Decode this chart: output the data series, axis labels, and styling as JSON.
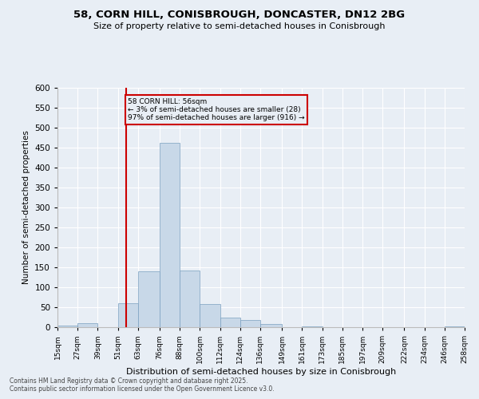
{
  "title1": "58, CORN HILL, CONISBROUGH, DONCASTER, DN12 2BG",
  "title2": "Size of property relative to semi-detached houses in Conisbrough",
  "xlabel": "Distribution of semi-detached houses by size in Conisbrough",
  "ylabel": "Number of semi-detached properties",
  "footnote1": "Contains HM Land Registry data © Crown copyright and database right 2025.",
  "footnote2": "Contains public sector information licensed under the Open Government Licence v3.0.",
  "annotation_title": "58 CORN HILL: 56sqm",
  "annotation_line1": "← 3% of semi-detached houses are smaller (28)",
  "annotation_line2": "97% of semi-detached houses are larger (916) →",
  "property_size": 56,
  "bar_color": "#c8d8e8",
  "bar_edge_color": "#7aa0c0",
  "vline_color": "#cc0000",
  "bg_color": "#e8eef5",
  "annotation_box_color": "#cc0000",
  "bins": [
    15,
    27,
    39,
    51,
    63,
    76,
    88,
    100,
    112,
    124,
    136,
    149,
    161,
    173,
    185,
    197,
    209,
    222,
    234,
    246,
    258
  ],
  "bin_labels": [
    "15sqm",
    "27sqm",
    "39sqm",
    "51sqm",
    "63sqm",
    "76sqm",
    "88sqm",
    "100sqm",
    "112sqm",
    "124sqm",
    "136sqm",
    "149sqm",
    "161sqm",
    "173sqm",
    "185sqm",
    "197sqm",
    "209sqm",
    "222sqm",
    "234sqm",
    "246sqm",
    "258sqm"
  ],
  "counts": [
    4,
    10,
    0,
    60,
    140,
    463,
    142,
    58,
    25,
    18,
    9,
    0,
    3,
    1,
    0,
    0,
    0,
    0,
    0,
    2
  ],
  "ylim": [
    0,
    600
  ],
  "yticks": [
    0,
    50,
    100,
    150,
    200,
    250,
    300,
    350,
    400,
    450,
    500,
    550,
    600
  ]
}
